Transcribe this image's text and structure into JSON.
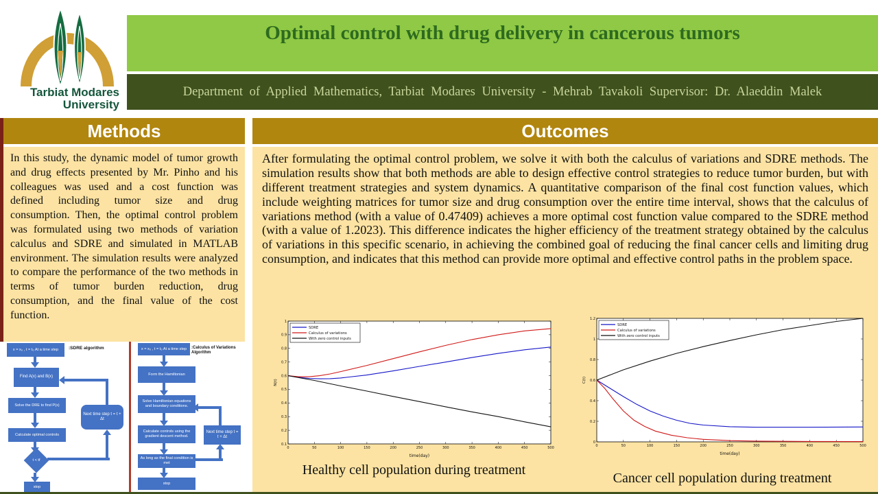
{
  "palette": {
    "light_green": "#8fc945",
    "dark_olive": "#3f511d",
    "gold_header": "#b1860f",
    "cream_panel": "#fce3a3",
    "flow_blue": "#4472c4",
    "maroon_strip": "#7a2217",
    "title_text": "#2e6b1f",
    "logo_green": "#14563b",
    "logo_gold": "#d09f35"
  },
  "header": {
    "logo_line1": "Tarbiat Modares",
    "logo_line2": "University",
    "title": "Optimal control with drug delivery in cancerous tumors",
    "subtitle": "Department of Applied Mathematics, Tarbiat Modares University - Mehrab Tavakoli Supervisor: Dr. Alaeddin Malek"
  },
  "methods": {
    "heading": "Methods",
    "body": "In this study, the dynamic model of tumor growth and drug effects presented by Mr. Pinho and his colleagues was used and a cost function was defined including tumor size and drug consumption. Then, the optimal control problem was formulated using two methods of variation calculus and SDRE and simulated in MATLAB environment. The simulation results were analyzed to compare the performance of the two methods in terms of tumor burden reduction, drug consumption, and the final value of the cost function."
  },
  "outcomes": {
    "heading": "Outcomes",
    "body": "After formulating the optimal control problem, we solve it with both the calculus of variations and SDRE methods. The simulation results show that both methods are able to design effective control strategies to reduce tumor burden, but with different treatment strategies and system dynamics. A quantitative comparison of the final cost function values, which include weighting matrices for tumor size and drug consumption over the entire time interval, shows that the calculus of variations method (with a value of 0.47409) achieves a more optimal cost function value compared to the SDRE method (with a value of 1.2023). This difference indicates the higher efficiency of the treatment strategy obtained by the calculus of variations in this specific scenario, in achieving the combined goal of reducing the final cancer cells and limiting drug consumption, and indicates that this method can provide more optimal and effective control paths in the problem space."
  },
  "flowcharts": {
    "sdre": {
      "title": ":SDRE algorithm",
      "steps": [
        "x = x₀ , t = t₀  At a time step",
        "Find A(x) and B(x)",
        "Solve the DRE to find P(x)",
        "Calculate optimal controls",
        "t < tf",
        "stop"
      ],
      "loop_label": "Next time step t = t + Δt"
    },
    "cov": {
      "title": ":Calculus of Variations Algorithm",
      "steps": [
        "x = x₀ , t = t₀  At a time step",
        "Form the Hamiltonian",
        "Solve Hamiltonian equations and boundary conditions.",
        "Calculate controls using the gradient descent method.",
        "As long as the final condition is met",
        "stop"
      ],
      "loop_label": "Next time step t = t + Δt"
    }
  },
  "chart_data": [
    {
      "type": "line",
      "title": "Healthy cell population during treatment",
      "xlabel": "time(day)",
      "ylabel": "N(t)",
      "xlim": [
        0,
        500
      ],
      "ylim": [
        0.1,
        1.0
      ],
      "xticks": [
        0,
        50,
        100,
        150,
        200,
        250,
        300,
        350,
        400,
        450,
        500
      ],
      "yticks": [
        0.1,
        0.2,
        0.3,
        0.4,
        0.5,
        0.6,
        0.7,
        0.8,
        0.9,
        1
      ],
      "grid": false,
      "legend_position": "top-left",
      "series": [
        {
          "name": "SDRE",
          "color": "#1515c8",
          "points": [
            [
              0,
              0.6
            ],
            [
              20,
              0.588
            ],
            [
              40,
              0.58
            ],
            [
              60,
              0.577
            ],
            [
              80,
              0.578
            ],
            [
              100,
              0.583
            ],
            [
              150,
              0.605
            ],
            [
              200,
              0.635
            ],
            [
              250,
              0.668
            ],
            [
              300,
              0.7
            ],
            [
              350,
              0.733
            ],
            [
              400,
              0.763
            ],
            [
              450,
              0.79
            ],
            [
              500,
              0.81
            ]
          ]
        },
        {
          "name": "Calculus of variations",
          "color": "#d01818",
          "points": [
            [
              0,
              0.6
            ],
            [
              20,
              0.592
            ],
            [
              40,
              0.592
            ],
            [
              60,
              0.6
            ],
            [
              80,
              0.613
            ],
            [
              100,
              0.63
            ],
            [
              150,
              0.675
            ],
            [
              200,
              0.725
            ],
            [
              250,
              0.775
            ],
            [
              300,
              0.822
            ],
            [
              350,
              0.865
            ],
            [
              400,
              0.9
            ],
            [
              450,
              0.928
            ],
            [
              500,
              0.945
            ]
          ]
        },
        {
          "name": "With zero control inputs",
          "color": "#111111",
          "points": [
            [
              0,
              0.6
            ],
            [
              50,
              0.565
            ],
            [
              100,
              0.525
            ],
            [
              150,
              0.487
            ],
            [
              200,
              0.448
            ],
            [
              250,
              0.41
            ],
            [
              300,
              0.372
            ],
            [
              350,
              0.335
            ],
            [
              400,
              0.3
            ],
            [
              450,
              0.262
            ],
            [
              500,
              0.225
            ]
          ]
        }
      ]
    },
    {
      "type": "line",
      "title": "Cancer cell population during treatment",
      "xlabel": "time(day)",
      "ylabel": "C(t)",
      "xlim": [
        0,
        500
      ],
      "ylim": [
        0,
        1.2
      ],
      "xticks": [
        0,
        50,
        100,
        150,
        200,
        250,
        300,
        350,
        400,
        450,
        500
      ],
      "yticks": [
        0,
        0.2,
        0.4,
        0.6,
        0.8,
        1,
        1.2
      ],
      "grid": false,
      "legend_position": "top-left",
      "series": [
        {
          "name": "SDRE",
          "color": "#1515c8",
          "points": [
            [
              0,
              0.6
            ],
            [
              25,
              0.52
            ],
            [
              50,
              0.44
            ],
            [
              75,
              0.365
            ],
            [
              100,
              0.3
            ],
            [
              125,
              0.25
            ],
            [
              150,
              0.21
            ],
            [
              175,
              0.18
            ],
            [
              200,
              0.163
            ],
            [
              250,
              0.147
            ],
            [
              300,
              0.142
            ],
            [
              400,
              0.142
            ],
            [
              500,
              0.145
            ]
          ]
        },
        {
          "name": "Calculus of variations",
          "color": "#d01818",
          "points": [
            [
              0,
              0.6
            ],
            [
              15,
              0.52
            ],
            [
              30,
              0.42
            ],
            [
              50,
              0.3
            ],
            [
              70,
              0.21
            ],
            [
              90,
              0.15
            ],
            [
              110,
              0.105
            ],
            [
              140,
              0.065
            ],
            [
              170,
              0.04
            ],
            [
              200,
              0.025
            ],
            [
              250,
              0.012
            ],
            [
              300,
              0.007
            ],
            [
              400,
              0.004
            ],
            [
              500,
              0.003
            ]
          ]
        },
        {
          "name": "With zero control inputs",
          "color": "#111111",
          "points": [
            [
              0,
              0.6
            ],
            [
              50,
              0.7
            ],
            [
              100,
              0.785
            ],
            [
              150,
              0.86
            ],
            [
              200,
              0.925
            ],
            [
              250,
              0.985
            ],
            [
              300,
              1.04
            ],
            [
              350,
              1.09
            ],
            [
              400,
              1.13
            ],
            [
              450,
              1.17
            ],
            [
              500,
              1.2
            ]
          ]
        }
      ]
    }
  ]
}
